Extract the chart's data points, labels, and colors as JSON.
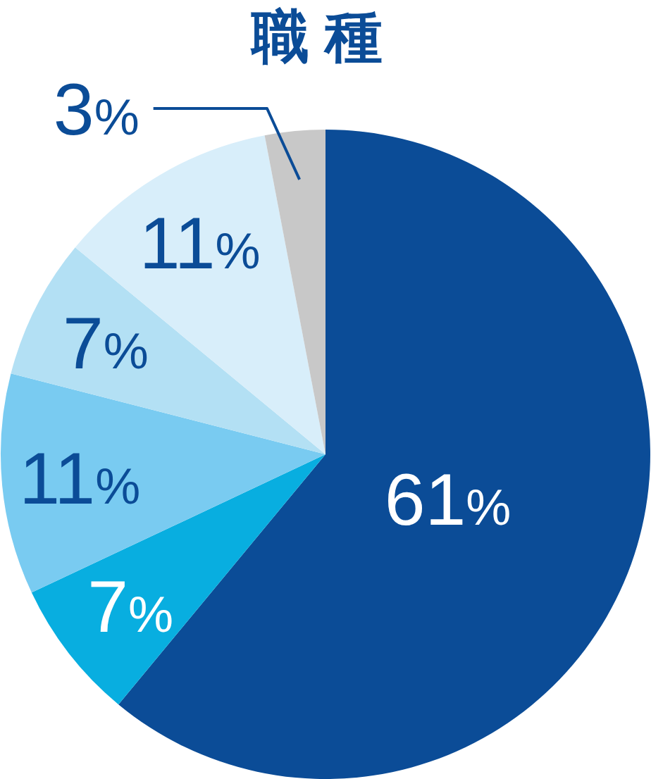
{
  "chart_data": {
    "type": "pie",
    "title": "職 種",
    "categories": [
      null,
      null,
      null,
      null,
      null,
      null
    ],
    "values": [
      61,
      7,
      11,
      7,
      11,
      3
    ],
    "colors": [
      "#0b4c97",
      "#08aee0",
      "#79cbf1",
      "#b3e0f4",
      "#d8eefa",
      "#c8c8c8"
    ],
    "value_labels": [
      "61%",
      "7%",
      "11%",
      "7%",
      "11%",
      "3%"
    ]
  }
}
